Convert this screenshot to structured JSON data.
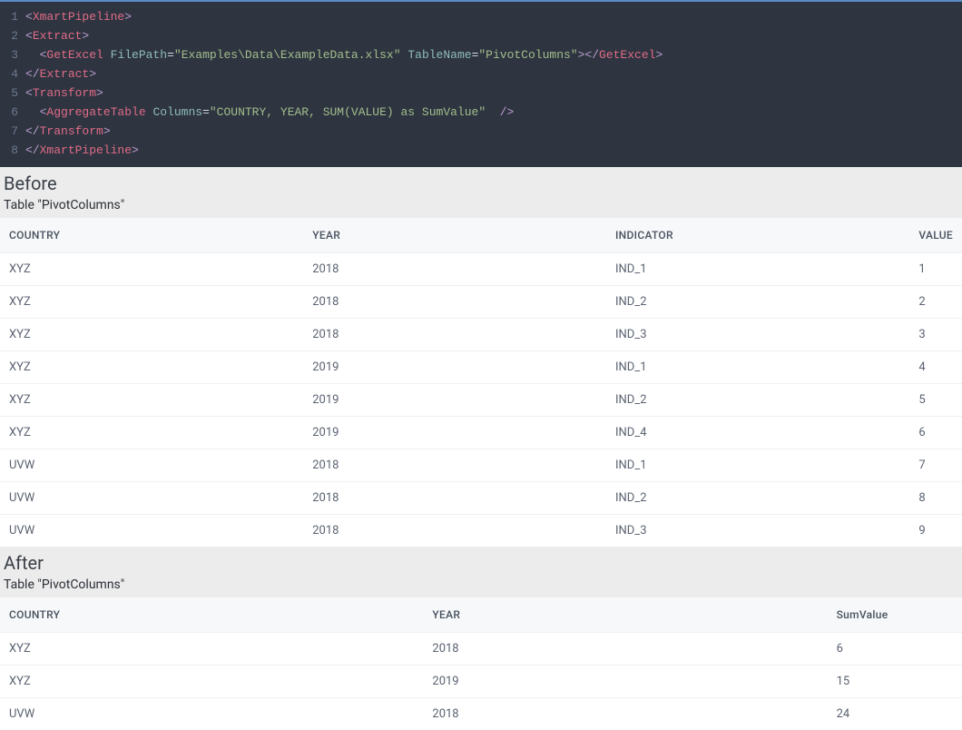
{
  "code": {
    "background_color": "#2e3440",
    "accent_bar_color": "#5a8bc4",
    "line_number_color": "#6c7a8e",
    "tag_color": "#e06c87",
    "attr_name_color": "#8fbcbb",
    "attr_value_color": "#a3be8c",
    "punct_color": "#bb9ecf",
    "lines": [
      {
        "n": "1",
        "tokens": [
          {
            "t": "<",
            "c": "punct"
          },
          {
            "t": "XmartPipeline",
            "c": "tag-name"
          },
          {
            "t": ">",
            "c": "punct"
          }
        ]
      },
      {
        "n": "2",
        "tokens": [
          {
            "t": "<",
            "c": "punct"
          },
          {
            "t": "Extract",
            "c": "tag-name"
          },
          {
            "t": ">",
            "c": "punct"
          }
        ]
      },
      {
        "n": "3",
        "tokens": [
          {
            "t": "  ",
            "c": ""
          },
          {
            "t": "<",
            "c": "punct"
          },
          {
            "t": "GetExcel",
            "c": "tag-name"
          },
          {
            "t": " ",
            "c": ""
          },
          {
            "t": "FilePath",
            "c": "attr-name"
          },
          {
            "t": "=",
            "c": "punct2"
          },
          {
            "t": "\"Examples\\Data\\ExampleData.xlsx\"",
            "c": "attr-value"
          },
          {
            "t": " ",
            "c": ""
          },
          {
            "t": "TableName",
            "c": "attr-name"
          },
          {
            "t": "=",
            "c": "punct2"
          },
          {
            "t": "\"PivotColumns\"",
            "c": "attr-value"
          },
          {
            "t": ">",
            "c": "punct"
          },
          {
            "t": "</",
            "c": "punct"
          },
          {
            "t": "GetExcel",
            "c": "tag-name"
          },
          {
            "t": ">",
            "c": "punct"
          }
        ]
      },
      {
        "n": "4",
        "tokens": [
          {
            "t": "</",
            "c": "punct"
          },
          {
            "t": "Extract",
            "c": "tag-name"
          },
          {
            "t": ">",
            "c": "punct"
          }
        ]
      },
      {
        "n": "5",
        "tokens": [
          {
            "t": "<",
            "c": "punct"
          },
          {
            "t": "Transform",
            "c": "tag-name"
          },
          {
            "t": ">",
            "c": "punct"
          }
        ]
      },
      {
        "n": "6",
        "tokens": [
          {
            "t": "  ",
            "c": ""
          },
          {
            "t": "<",
            "c": "punct"
          },
          {
            "t": "AggregateTable",
            "c": "tag-name"
          },
          {
            "t": " ",
            "c": ""
          },
          {
            "t": "Columns",
            "c": "attr-name"
          },
          {
            "t": "=",
            "c": "punct2"
          },
          {
            "t": "\"COUNTRY, YEAR, SUM(VALUE) as SumValue\"",
            "c": "attr-value"
          },
          {
            "t": "  ",
            "c": ""
          },
          {
            "t": "/>",
            "c": "punct"
          }
        ]
      },
      {
        "n": "7",
        "tokens": [
          {
            "t": "</",
            "c": "punct"
          },
          {
            "t": "Transform",
            "c": "tag-name"
          },
          {
            "t": ">",
            "c": "punct"
          }
        ]
      },
      {
        "n": "8",
        "tokens": [
          {
            "t": "</",
            "c": "punct"
          },
          {
            "t": "XmartPipeline",
            "c": "tag-name"
          },
          {
            "t": ">",
            "c": "punct"
          }
        ]
      }
    ]
  },
  "before": {
    "heading": "Before",
    "caption": "Table \"PivotColumns\"",
    "columns": [
      "COUNTRY",
      "YEAR",
      "INDICATOR",
      "VALUE"
    ],
    "col_widths": [
      "32%",
      "32%",
      "32%",
      "4%"
    ],
    "rows": [
      [
        "XYZ",
        "2018",
        "IND_1",
        "1"
      ],
      [
        "XYZ",
        "2018",
        "IND_2",
        "2"
      ],
      [
        "XYZ",
        "2018",
        "IND_3",
        "3"
      ],
      [
        "XYZ",
        "2019",
        "IND_1",
        "4"
      ],
      [
        "XYZ",
        "2019",
        "IND_2",
        "5"
      ],
      [
        "XYZ",
        "2019",
        "IND_4",
        "6"
      ],
      [
        "UVW",
        "2018",
        "IND_1",
        "7"
      ],
      [
        "UVW",
        "2018",
        "IND_2",
        "8"
      ],
      [
        "UVW",
        "2018",
        "IND_3",
        "9"
      ]
    ]
  },
  "after": {
    "heading": "After",
    "caption": "Table \"PivotColumns\"",
    "columns": [
      "COUNTRY",
      "YEAR",
      "SumValue"
    ],
    "col_widths": [
      "44%",
      "42%",
      "14%"
    ],
    "rows": [
      [
        "XYZ",
        "2018",
        "6"
      ],
      [
        "XYZ",
        "2019",
        "15"
      ],
      [
        "UVW",
        "2018",
        "24"
      ]
    ]
  },
  "table_style": {
    "header_bg": "#f6f8fa",
    "header_text_color": "#47505c",
    "cell_text_color": "#5a6270",
    "row_border_color": "#eef0f3",
    "caption_bg": "#ececec"
  }
}
